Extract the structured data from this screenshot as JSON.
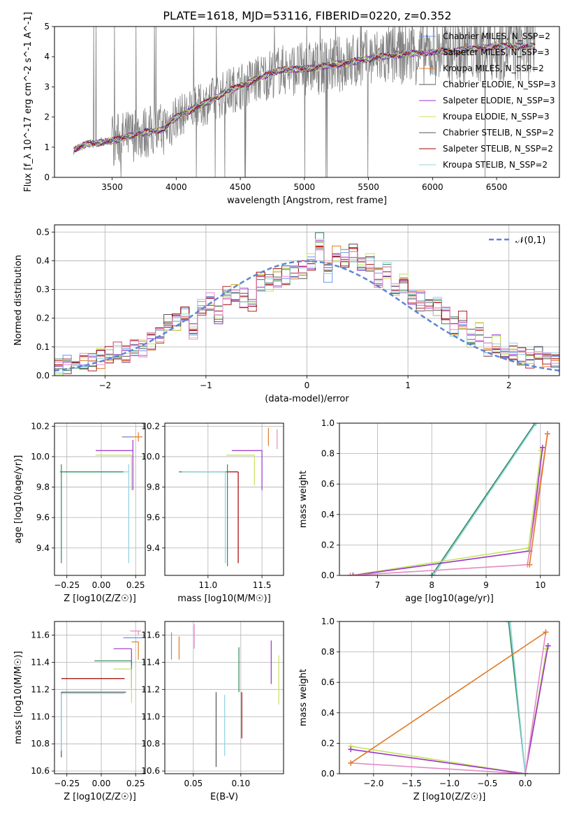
{
  "figure_title": "PLATE=1618, MJD=53116, FIBERID=0220, z=0.352",
  "colors": {
    "blue": "#6495ED",
    "orange": "#E07B28",
    "green": "#2E8B57",
    "red": "#B22222",
    "purple": "#9932CC",
    "yellowgreen": "#C5E35A",
    "gray": "#555555",
    "darkred": "#A30000",
    "cyan": "#8FD3DF",
    "pink": "#E58AC9",
    "data": "#808080"
  },
  "chart_data": [
    {
      "id": "spectrum",
      "type": "line",
      "title": "PLATE=1618, MJD=53116, FIBERID=0220, z=0.352",
      "xlabel": "wavelength [Angstrom, rest frame]",
      "ylabel": "Flux [f_λ 10^-17 erg cm^-2 s^-1 A^-1]",
      "xlim": [
        3050,
        6990
      ],
      "ylim": [
        0,
        5
      ],
      "xticks": [
        3500,
        4000,
        4500,
        5000,
        5500,
        6000,
        6500
      ],
      "yticks": [
        0,
        1,
        2,
        3,
        4,
        5
      ],
      "legend_position": "top-right",
      "legend": [
        {
          "name": "Chabrier MILES, N_SSP=2",
          "color": "#6495ED"
        },
        {
          "name": "Salpeter MILES, N_SSP=3",
          "color": "#9932CC"
        },
        {
          "name": "Kroupa MILES, N_SSP=2",
          "color": "#E07B28"
        },
        {
          "name": "Chabrier ELODIE, N_SSP=3",
          "color": "#555555"
        },
        {
          "name": "Salpeter ELODIE, N_SSP=3",
          "color": "#9932CC"
        },
        {
          "name": "Kroupa ELODIE, N_SSP=3",
          "color": "#C5E35A"
        },
        {
          "name": "Chabrier STELIB, N_SSP=2",
          "color": "#555555"
        },
        {
          "name": "Salpeter STELIB, N_SSP=2",
          "color": "#A30000"
        },
        {
          "name": "Kroupa STELIB, N_SSP=2",
          "color": "#8FD3DF"
        }
      ],
      "continuum": [
        [
          3200,
          0.9
        ],
        [
          3300,
          1.1
        ],
        [
          3500,
          1.2
        ],
        [
          3700,
          1.45
        ],
        [
          3900,
          1.6
        ],
        [
          4000,
          2.0
        ],
        [
          4200,
          2.4
        ],
        [
          4400,
          2.85
        ],
        [
          4600,
          3.2
        ],
        [
          4800,
          3.55
        ],
        [
          5000,
          3.6
        ],
        [
          5200,
          3.7
        ],
        [
          5400,
          3.85
        ],
        [
          5600,
          4.0
        ],
        [
          5800,
          4.1
        ],
        [
          6000,
          4.15
        ],
        [
          6200,
          4.2
        ],
        [
          6400,
          4.3
        ],
        [
          6600,
          4.35
        ],
        [
          6800,
          4.35
        ]
      ],
      "data_range": [
        3200,
        6800
      ],
      "model_range": [
        3200,
        6800
      ]
    },
    {
      "id": "residuals",
      "type": "line",
      "xlabel": "(data-model)/error",
      "ylabel": "Normed distribution",
      "xlim": [
        -2.5,
        2.5
      ],
      "ylim": [
        0,
        0.525
      ],
      "xticks": [
        -2,
        -1,
        0,
        1,
        2
      ],
      "yticks": [
        0.0,
        0.1,
        0.2,
        0.3,
        0.4,
        0.5
      ],
      "grid": true,
      "legend_position": "top-right",
      "legend": [
        {
          "name": "𝒩(0,1)",
          "color": "#5B86D5"
        }
      ],
      "hist_shape": [
        0.03,
        0.04,
        0.04,
        0.05,
        0.05,
        0.06,
        0.07,
        0.09,
        0.08,
        0.1,
        0.09,
        0.12,
        0.14,
        0.18,
        0.19,
        0.21,
        0.15,
        0.24,
        0.26,
        0.21,
        0.28,
        0.29,
        0.27,
        0.24,
        0.33,
        0.32,
        0.34,
        0.35,
        0.36,
        0.37,
        0.4,
        0.47,
        0.36,
        0.42,
        0.41,
        0.43,
        0.4,
        0.39,
        0.34,
        0.37,
        0.3,
        0.32,
        0.28,
        0.26,
        0.23,
        0.24,
        0.21,
        0.17,
        0.19,
        0.13,
        0.15,
        0.1,
        0.11,
        0.09,
        0.08,
        0.07,
        0.06,
        0.07,
        0.05,
        0.06
      ]
    },
    {
      "id": "age_vs_Z",
      "type": "scatter",
      "xlabel": "Z [log10(Z/Z☉)]",
      "ylabel": "age  [log10(age/yr)]",
      "xlim": [
        -0.34,
        0.32
      ],
      "ylim": [
        9.22,
        10.22
      ],
      "xticks": [
        -0.25,
        0.0,
        0.25
      ],
      "xtick_labels": [
        "−0.25",
        "0.00",
        "0.25"
      ],
      "yticks": [
        9.4,
        9.6,
        9.8,
        10.0,
        10.2
      ],
      "grid": true,
      "points": [
        {
          "x": 0.27,
          "y": 10.13,
          "xerr": [
            0.12,
            0.03
          ],
          "yerr": [
            0.03,
            0.03
          ],
          "color": "#E07B28"
        },
        {
          "x": 0.22,
          "y": 10.13,
          "xerr": [
            0.06,
            0.0
          ],
          "yerr": [
            0.0,
            0.0
          ],
          "color": "#6495ED"
        },
        {
          "x": 0.23,
          "y": 10.04,
          "xerr": [
            0.27,
            0.0
          ],
          "yerr": [
            0.26,
            0.07
          ],
          "color": "#9932CC"
        },
        {
          "x": 0.22,
          "y": 10.01,
          "xerr": [
            0.26,
            0.0
          ],
          "yerr": [
            0.23,
            0.0
          ],
          "color": "#C5E35A"
        },
        {
          "x": 0.2,
          "y": 9.9,
          "xerr": [
            0.48,
            0.0
          ],
          "yerr": [
            0.6,
            0.05
          ],
          "color": "#8FD3DF"
        },
        {
          "x": -0.29,
          "y": 9.9,
          "xerr": [
            0.01,
            0.45
          ],
          "yerr": [
            0.6,
            0.05
          ],
          "color": "#2E8B57"
        }
      ]
    },
    {
      "id": "age_vs_mass",
      "type": "scatter",
      "xlabel": "mass [log10(M/M☉)]",
      "ylabel": "",
      "xlim": [
        10.6,
        11.7
      ],
      "ylim": [
        9.22,
        10.22
      ],
      "xticks": [
        11.0,
        11.5
      ],
      "yticks": [
        9.4,
        9.6,
        9.8,
        10.0,
        10.2
      ],
      "grid": true,
      "points": [
        {
          "x": 11.56,
          "y": 10.13,
          "xerr": [
            0.0,
            0.0
          ],
          "yerr": [
            0.06,
            0.06
          ],
          "color": "#E07B28"
        },
        {
          "x": 11.64,
          "y": 10.13,
          "xerr": [
            0.0,
            0.0
          ],
          "yerr": [
            0.08,
            0.05
          ],
          "color": "#E58AC9"
        },
        {
          "x": 11.5,
          "y": 10.04,
          "xerr": [
            0.28,
            0.0
          ],
          "yerr": [
            0.26,
            0.0
          ],
          "color": "#9932CC"
        },
        {
          "x": 11.43,
          "y": 10.01,
          "xerr": [
            0.26,
            0.0
          ],
          "yerr": [
            0.2,
            0.0
          ],
          "color": "#C5E35A"
        },
        {
          "x": 11.28,
          "y": 9.9,
          "xerr": [
            0.1,
            0.0
          ],
          "yerr": [
            0.6,
            0.0
          ],
          "color": "#A30000"
        },
        {
          "x": 11.18,
          "y": 9.9,
          "xerr": [
            0.45,
            0.0
          ],
          "yerr": [
            0.62,
            0.05
          ],
          "color": "#2E8B57"
        },
        {
          "x": 11.16,
          "y": 9.9,
          "xerr": [
            0.4,
            0.0
          ],
          "yerr": [
            0.6,
            0.0
          ],
          "color": "#8FD3DF"
        }
      ]
    },
    {
      "id": "weight_vs_age",
      "type": "line",
      "xlabel": "age  [log10(age/yr)]",
      "ylabel": "mass weight",
      "xlim": [
        6.3,
        10.35
      ],
      "ylim": [
        0.0,
        1.0
      ],
      "xticks": [
        7,
        8,
        9,
        10
      ],
      "yticks": [
        0.0,
        0.2,
        0.4,
        0.6,
        0.8,
        1.0
      ],
      "grid": true,
      "series": [
        {
          "color": "#2E8B57",
          "x": [
            8.0,
            9.9
          ],
          "y": [
            0.0,
            1.0
          ]
        },
        {
          "color": "#8FD3DF",
          "x": [
            8.03,
            9.92
          ],
          "y": [
            0.0,
            1.0
          ]
        },
        {
          "color": "#C5E35A",
          "x": [
            6.5,
            9.78,
            10.01
          ],
          "y": [
            0.0,
            0.18,
            0.82
          ]
        },
        {
          "color": "#9932CC",
          "x": [
            6.55,
            9.8,
            10.04
          ],
          "y": [
            0.0,
            0.16,
            0.84
          ]
        },
        {
          "color": "#E58AC9",
          "x": [
            6.5,
            9.76,
            10.13
          ],
          "y": [
            0.0,
            0.07,
            0.93
          ]
        },
        {
          "color": "#E07B28",
          "x": [
            9.8,
            10.13
          ],
          "y": [
            0.07,
            0.93
          ]
        }
      ]
    },
    {
      "id": "mass_vs_Z",
      "type": "scatter",
      "xlabel": "Z [log10(Z/Z☉)]",
      "ylabel": "mass [log10(M/M☉)]",
      "xlim": [
        -0.34,
        0.32
      ],
      "ylim": [
        10.58,
        11.7
      ],
      "xticks": [
        -0.25,
        0.0,
        0.25
      ],
      "xtick_labels": [
        "−0.25",
        "0.00",
        "0.25"
      ],
      "yticks": [
        10.6,
        10.8,
        11.0,
        11.2,
        11.4,
        11.6
      ],
      "grid": true,
      "points": [
        {
          "x": 0.27,
          "y": 11.63,
          "xerr": [
            0.06,
            0.02
          ],
          "yerr": [
            0.03,
            0.0
          ],
          "color": "#E58AC9"
        },
        {
          "x": 0.28,
          "y": 11.58,
          "xerr": [
            0.12,
            0.02
          ],
          "yerr": [
            0.0,
            0.0
          ],
          "color": "#6495ED"
        },
        {
          "x": 0.27,
          "y": 11.55,
          "xerr": [
            0.05,
            0.0
          ],
          "yerr": [
            0.13,
            0.0
          ],
          "color": "#E07B28"
        },
        {
          "x": 0.22,
          "y": 11.5,
          "xerr": [
            0.13,
            0.0
          ],
          "yerr": [
            0.12,
            0.0
          ],
          "color": "#9932CC"
        },
        {
          "x": 0.22,
          "y": 11.41,
          "xerr": [
            0.27,
            0.0
          ],
          "yerr": [
            0.2,
            0.0
          ],
          "color": "#2E8B57"
        },
        {
          "x": 0.22,
          "y": 11.35,
          "xerr": [
            0.13,
            0.0
          ],
          "yerr": [
            0.25,
            0.0
          ],
          "color": "#C5E35A"
        },
        {
          "x": -0.29,
          "y": 11.28,
          "xerr": [
            0.0,
            0.46
          ],
          "yerr": [
            0.0,
            0.0
          ],
          "color": "#A30000"
        },
        {
          "x": -0.29,
          "y": 11.18,
          "xerr": [
            0.0,
            0.47
          ],
          "yerr": [
            0.48,
            0.0
          ],
          "color": "#555555"
        },
        {
          "x": -0.29,
          "y": 11.17,
          "xerr": [
            0.0,
            0.46
          ],
          "yerr": [
            0.42,
            0.0
          ],
          "color": "#8FD3DF"
        }
      ]
    },
    {
      "id": "mass_vs_EBV",
      "type": "scatter",
      "xlabel": "E(B-V)",
      "ylabel": "",
      "xlim": [
        0.02,
        0.145
      ],
      "ylim": [
        10.58,
        11.7
      ],
      "xticks": [
        0.05,
        0.1
      ],
      "yticks": [
        10.6,
        10.8,
        11.0,
        11.2,
        11.4,
        11.6
      ],
      "grid": true,
      "points": [
        {
          "x": 0.027,
          "y": 11.52,
          "yerr": [
            0.1,
            0.1
          ],
          "color": "#6495ED"
        },
        {
          "x": 0.035,
          "y": 11.52,
          "yerr": [
            0.1,
            0.07
          ],
          "color": "#E07B28"
        },
        {
          "x": 0.051,
          "y": 11.58,
          "yerr": [
            0.08,
            0.1
          ],
          "color": "#E58AC9"
        },
        {
          "x": 0.074,
          "y": 10.9,
          "yerr": [
            0.27,
            0.28
          ],
          "color": "#555555"
        },
        {
          "x": 0.083,
          "y": 10.94,
          "yerr": [
            0.23,
            0.22
          ],
          "color": "#8FD3DF"
        },
        {
          "x": 0.098,
          "y": 11.33,
          "yerr": [
            0.15,
            0.18
          ],
          "color": "#2E8B57"
        },
        {
          "x": 0.101,
          "y": 11.02,
          "yerr": [
            0.18,
            0.16
          ],
          "color": "#A30000"
        },
        {
          "x": 0.132,
          "y": 11.4,
          "yerr": [
            0.16,
            0.16
          ],
          "color": "#9932CC"
        },
        {
          "x": 0.14,
          "y": 11.27,
          "yerr": [
            0.18,
            0.18
          ],
          "color": "#C5E35A"
        }
      ]
    },
    {
      "id": "weight_vs_Z",
      "type": "line",
      "xlabel": "Z [log10(Z/Z☉)]",
      "ylabel": "mass weight",
      "xlim": [
        -2.45,
        0.45
      ],
      "ylim": [
        0.0,
        1.0
      ],
      "xticks": [
        -2.0,
        -1.5,
        -1.0,
        -0.5,
        0.0
      ],
      "xtick_labels": [
        "−2.0",
        "−1.5",
        "−1.0",
        "−0.5",
        "0.0"
      ],
      "yticks": [
        0.0,
        0.2,
        0.4,
        0.6,
        0.8,
        1.0
      ],
      "grid": true,
      "series": [
        {
          "color": "#2E8B57",
          "x": [
            -0.22,
            0.0
          ],
          "y": [
            1.0,
            0.0
          ]
        },
        {
          "color": "#8FD3DF",
          "x": [
            -0.2,
            0.0
          ],
          "y": [
            1.0,
            0.0
          ]
        },
        {
          "color": "#C5E35A",
          "x": [
            -2.3,
            0.0,
            0.28
          ],
          "y": [
            0.18,
            0.0,
            0.82
          ]
        },
        {
          "color": "#9932CC",
          "x": [
            -2.3,
            0.0,
            0.3
          ],
          "y": [
            0.16,
            0.0,
            0.84
          ]
        },
        {
          "color": "#E58AC9",
          "x": [
            -2.3,
            0.0,
            0.27
          ],
          "y": [
            0.07,
            0.0,
            0.93
          ]
        },
        {
          "color": "#E07B28",
          "x": [
            -2.3,
            0.27
          ],
          "y": [
            0.07,
            0.93
          ]
        }
      ]
    }
  ]
}
